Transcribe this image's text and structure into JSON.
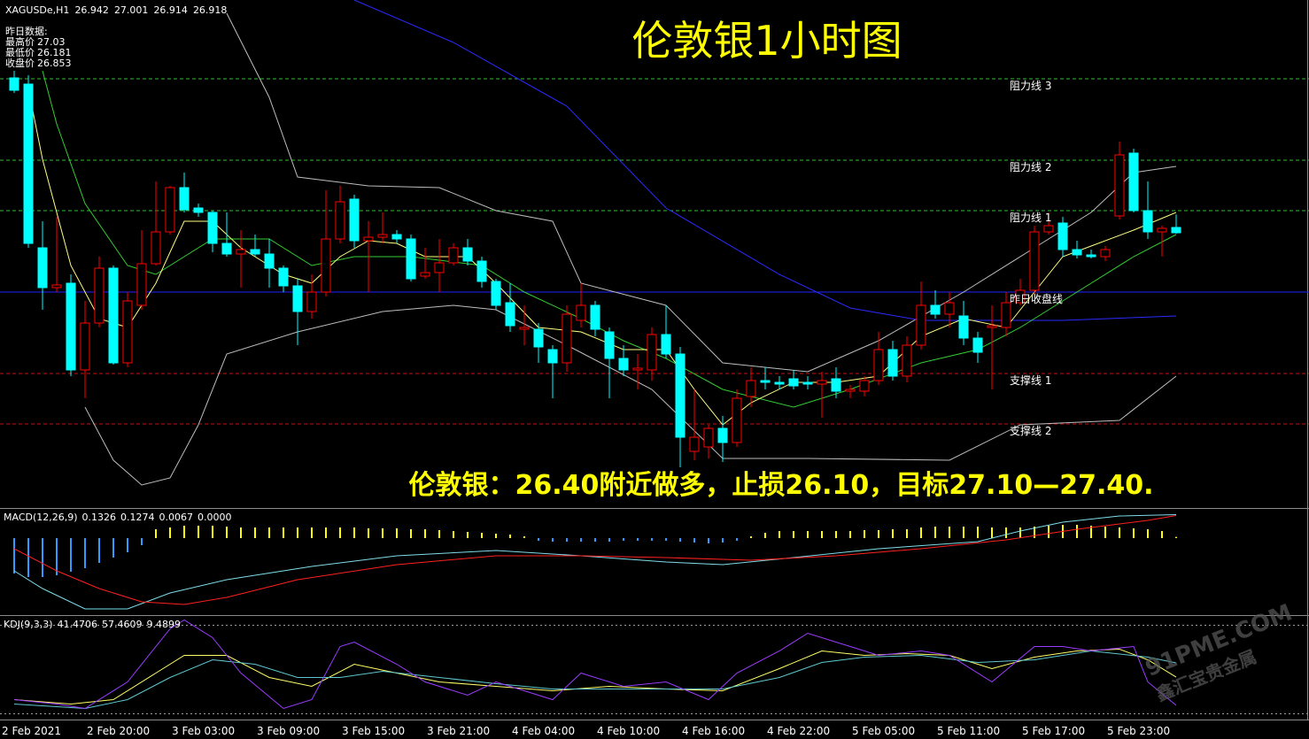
{
  "chart_data": [
    {
      "type": "candlestick",
      "title": "伦敦银1小时图",
      "symbol": "XAGUSDe,H1",
      "annotation": "伦敦银：26.40附近做多，止损26.10，目标27.10—27.40.",
      "info": {
        "heading": "昨日数据:",
        "items": [
          {
            "label": "最高价",
            "value": 27.03
          },
          {
            "label": "最低价",
            "value": 26.181
          },
          {
            "label": "收盘价",
            "value": 26.853
          }
        ]
      },
      "watermark": [
        "91PME.COM",
        "鑫汇宝贵金属"
      ],
      "categories": [
        "2 Feb 2021",
        null,
        null,
        null,
        null,
        null,
        "2 Feb 20:00",
        null,
        null,
        null,
        null,
        null,
        "3 Feb 03:00",
        null,
        null,
        null,
        null,
        null,
        "3 Feb 09:00",
        null,
        null,
        null,
        null,
        null,
        "3 Feb 15:00",
        null,
        null,
        null,
        null,
        null,
        "3 Feb 21:00",
        null,
        null,
        null,
        null,
        null,
        "4 Feb 04:00",
        null,
        null,
        null,
        null,
        null,
        "4 Feb 10:00",
        null,
        null,
        null,
        null,
        null,
        "4 Feb 16:00",
        null,
        null,
        null,
        null,
        null,
        "4 Feb 22:00",
        null,
        null,
        null,
        null,
        null,
        "5 Feb 05:00",
        null,
        null,
        null,
        null,
        null,
        "5 Feb 11:00",
        null,
        null,
        null,
        null,
        null,
        "5 Feb 17:00",
        null,
        null,
        null,
        null,
        null,
        "5 Feb 23:00",
        null,
        null,
        null,
        null
      ],
      "open": [
        27.618,
        27.59,
        26.85,
        26.67,
        26.69,
        26.298,
        26.51,
        26.758,
        26.33,
        26.59,
        26.778,
        26.922,
        27.122,
        27.03,
        27.01,
        26.87,
        26.822,
        26.842,
        26.822,
        26.758,
        26.678,
        26.562,
        26.65,
        26.89,
        27.07,
        26.882,
        26.898,
        26.91,
        26.89,
        26.722,
        26.738,
        26.782,
        26.85,
        26.79,
        26.698,
        26.602,
        26.482,
        26.482,
        26.39,
        26.33,
        26.522,
        26.59,
        26.47,
        26.35,
        26.298,
        26.298,
        26.458,
        26.37,
        25.93,
        25.95,
        26.034,
        25.97,
        26.178,
        26.25,
        26.242,
        26.258,
        26.242,
        26.234,
        26.258,
        26.202,
        26.202,
        26.25,
        26.39,
        26.27,
        26.41,
        26.59,
        26.55,
        26.542,
        26.442,
        26.49,
        26.49,
        26.602,
        26.658,
        26.922,
        26.962,
        26.842,
        26.818,
        26.81,
        26.994,
        27.278,
        27.018,
        26.922,
        26.942
      ],
      "high": [
        27.65,
        27.63,
        26.97,
        26.99,
        26.73,
        26.61,
        26.81,
        26.77,
        26.65,
        26.93,
        27.15,
        27.13,
        27.19,
        27.05,
        27.018,
        27.01,
        26.93,
        26.91,
        26.89,
        26.77,
        26.71,
        26.73,
        27.11,
        27.13,
        27.09,
        26.97,
        27.01,
        26.93,
        26.91,
        26.85,
        26.89,
        26.87,
        26.89,
        26.81,
        26.71,
        26.69,
        26.59,
        26.51,
        26.41,
        26.59,
        26.69,
        26.61,
        26.49,
        26.41,
        26.37,
        26.49,
        26.59,
        26.402,
        26.21,
        26.05,
        26.09,
        26.21,
        26.31,
        26.31,
        26.27,
        26.298,
        26.27,
        26.29,
        26.31,
        26.23,
        26.27,
        26.47,
        26.43,
        26.45,
        26.698,
        26.658,
        26.65,
        26.61,
        26.47,
        26.59,
        26.65,
        26.71,
        26.95,
        27.01,
        26.99,
        26.882,
        26.842,
        26.858,
        27.33,
        27.298,
        27.15,
        26.95,
        27.001
      ],
      "low": [
        27.55,
        26.85,
        26.57,
        26.65,
        26.27,
        26.17,
        26.49,
        26.322,
        26.31,
        26.57,
        26.77,
        26.91,
        27.01,
        26.99,
        26.83,
        26.81,
        26.67,
        26.81,
        26.67,
        26.65,
        26.41,
        26.53,
        26.63,
        26.87,
        26.85,
        26.65,
        26.87,
        26.87,
        26.698,
        26.71,
        26.65,
        26.77,
        26.77,
        26.67,
        26.57,
        26.47,
        26.41,
        26.33,
        26.17,
        26.29,
        26.49,
        26.45,
        26.17,
        26.27,
        26.21,
        26.25,
        26.35,
        25.858,
        25.89,
        25.898,
        25.882,
        25.95,
        26.13,
        26.21,
        26.21,
        26.21,
        26.21,
        26.082,
        26.17,
        26.17,
        26.178,
        26.23,
        26.25,
        26.242,
        26.39,
        26.53,
        26.49,
        26.41,
        26.33,
        26.21,
        26.45,
        26.59,
        26.63,
        26.91,
        26.81,
        26.802,
        26.802,
        26.79,
        26.978,
        27.01,
        26.89,
        26.81,
        26.914
      ],
      "close": [
        27.562,
        26.87,
        26.67,
        26.682,
        26.298,
        26.51,
        26.758,
        26.33,
        26.61,
        26.778,
        26.922,
        27.122,
        27.022,
        27.01,
        26.87,
        26.822,
        26.842,
        26.822,
        26.758,
        26.678,
        26.562,
        26.65,
        26.89,
        27.058,
        26.882,
        26.898,
        26.91,
        26.89,
        26.71,
        26.738,
        26.782,
        26.85,
        26.79,
        26.698,
        26.59,
        26.498,
        26.49,
        26.402,
        26.33,
        26.55,
        26.59,
        26.482,
        26.35,
        26.298,
        26.306,
        26.458,
        26.37,
        25.994,
        25.994,
        26.034,
        25.97,
        26.17,
        26.25,
        26.242,
        26.234,
        26.226,
        26.234,
        26.25,
        26.202,
        26.21,
        26.25,
        26.39,
        26.27,
        26.41,
        26.59,
        26.55,
        26.602,
        26.442,
        26.378,
        26.498,
        26.602,
        26.658,
        26.922,
        26.95,
        26.842,
        26.818,
        26.81,
        26.842,
        27.27,
        27.018,
        26.922,
        26.938,
        26.918
      ],
      "up_color": "#ff0000",
      "down_color": "#00ffff",
      "ylim": [
        25.682,
        27.97
      ],
      "levels": [
        {
          "label": "阻力线 3",
          "value": 27.614,
          "color": "#2fbf2f",
          "style": "dashed"
        },
        {
          "label": "阻力线 2",
          "value": 27.246,
          "color": "#2fbf2f",
          "style": "dashed"
        },
        {
          "label": "阻力线 1",
          "value": 27.018,
          "color": "#2fbf2f",
          "style": "dashed"
        },
        {
          "label": "昨日收盘线",
          "value": 26.65,
          "color": "#2222ff",
          "style": "solid"
        },
        {
          "label": "支撑线 1",
          "value": 26.282,
          "color": "#cc1010",
          "style": "dashed"
        },
        {
          "label": "支撑线 2",
          "value": 26.054,
          "color": "#cc1010",
          "style": "dashed"
        }
      ],
      "overlays": [
        {
          "color": "#bdbdbd",
          "x": [
            15,
            18,
            20,
            25,
            30,
            34,
            38,
            40,
            46,
            50,
            56,
            61,
            67,
            72,
            76,
            79,
            82
          ],
          "values": [
            27.91,
            27.53,
            27.17,
            27.13,
            27.122,
            27.018,
            26.97,
            26.69,
            26.59,
            26.33,
            26.29,
            26.43,
            26.65,
            26.85,
            27.01,
            27.19,
            27.218
          ]
        },
        {
          "color": "#bdbdbd",
          "x": [
            5,
            7,
            9,
            11,
            13,
            15,
            20,
            26,
            31,
            34,
            39,
            45,
            50,
            56,
            66,
            71,
            78,
            82
          ],
          "values": [
            26.13,
            25.89,
            25.778,
            25.81,
            26.05,
            26.37,
            26.47,
            26.562,
            26.59,
            26.57,
            26.41,
            26.21,
            25.898,
            25.898,
            25.89,
            26.05,
            26.07,
            26.27
          ]
        },
        {
          "color": "#2a2aff",
          "x": [
            24,
            31,
            39,
            46,
            54,
            59,
            64,
            74,
            82
          ],
          "values": [
            27.97,
            27.778,
            27.49,
            27.03,
            26.73,
            26.578,
            26.522,
            26.522,
            26.542
          ]
        },
        {
          "color": "#33cc33",
          "x": [
            2,
            3,
            5,
            8,
            10,
            14,
            18,
            21,
            24,
            28,
            33,
            36,
            40,
            43,
            46,
            50,
            55,
            59,
            64,
            68,
            71,
            75,
            79,
            82
          ],
          "values": [
            27.65,
            27.41,
            27.05,
            26.77,
            26.73,
            26.89,
            26.89,
            26.77,
            26.81,
            26.81,
            26.77,
            26.65,
            26.53,
            26.43,
            26.35,
            26.21,
            26.13,
            26.21,
            26.33,
            26.39,
            26.49,
            26.65,
            26.81,
            26.91
          ]
        },
        {
          "color": "#ffff80",
          "x": [
            1,
            2,
            4,
            6,
            8,
            10,
            12,
            14,
            16,
            19,
            21,
            23,
            25,
            27,
            29,
            32,
            34,
            37,
            40,
            43,
            46,
            48,
            50,
            52,
            55,
            58,
            61,
            64,
            67,
            70,
            72,
            74,
            76,
            79,
            82
          ],
          "values": [
            27.57,
            27.25,
            26.77,
            26.53,
            26.49,
            26.69,
            26.97,
            26.97,
            26.85,
            26.73,
            26.69,
            26.81,
            26.882,
            26.87,
            26.81,
            26.81,
            26.69,
            26.49,
            26.47,
            26.39,
            26.39,
            26.21,
            26.05,
            26.15,
            26.242,
            26.242,
            26.27,
            26.45,
            26.53,
            26.49,
            26.65,
            26.81,
            26.858,
            26.93,
            27.01
          ]
        }
      ]
    },
    {
      "type": "macd",
      "name": "MACD(12,26,9)",
      "ylim": [
        -0.43,
        0.155
      ],
      "histogram": {
        "up_color": "#ffff00",
        "down_color": "#3399ff",
        "values": [
          -0.2,
          -0.22,
          -0.22,
          -0.21,
          -0.19,
          -0.17,
          -0.14,
          -0.11,
          -0.08,
          -0.04,
          0.05,
          0.06,
          0.07,
          0.07,
          0.07,
          0.065,
          0.06,
          0.06,
          0.06,
          0.06,
          0.06,
          0.06,
          0.06,
          0.06,
          0.06,
          0.055,
          0.055,
          0.055,
          0.05,
          0.05,
          0.045,
          0.04,
          0.035,
          0.03,
          0.025,
          0.02,
          0.01,
          -0.015,
          -0.02,
          -0.02,
          -0.02,
          -0.02,
          -0.02,
          -0.015,
          -0.015,
          -0.015,
          -0.015,
          -0.02,
          -0.025,
          -0.03,
          -0.025,
          -0.015,
          0.01,
          0.03,
          0.04,
          0.04,
          0.04,
          0.04,
          0.04,
          0.04,
          0.045,
          0.045,
          0.05,
          0.05,
          0.06,
          0.065,
          0.065,
          0.065,
          0.065,
          0.06,
          0.06,
          0.06,
          0.065,
          0.07,
          0.075,
          0.075,
          0.07,
          0.065,
          0.06,
          0.055,
          0.05,
          0.04,
          0.0067
        ]
      },
      "series": [
        {
          "color": "#7fdcea",
          "x": [
            0,
            2,
            5,
            8,
            11,
            15,
            21,
            27,
            34,
            40,
            46,
            50,
            55,
            61,
            68,
            71,
            74,
            78,
            82
          ],
          "values": [
            -0.185,
            -0.285,
            -0.4,
            -0.4,
            -0.31,
            -0.235,
            -0.16,
            -0.1,
            -0.07,
            -0.1,
            -0.135,
            -0.15,
            -0.11,
            -0.06,
            -0.02,
            0.04,
            0.09,
            0.125,
            0.1326
          ]
        },
        {
          "color": "#ff2020",
          "x": [
            0,
            3,
            6,
            9,
            12,
            15,
            20,
            27,
            34,
            40,
            46,
            52,
            58,
            64,
            70,
            75,
            80,
            82
          ],
          "values": [
            -0.06,
            -0.185,
            -0.285,
            -0.36,
            -0.375,
            -0.335,
            -0.235,
            -0.15,
            -0.1,
            -0.1,
            -0.11,
            -0.125,
            -0.1,
            -0.06,
            -0.01,
            0.05,
            0.1,
            0.1274
          ]
        }
      ],
      "readout_extra": {
        "value": 0,
        "label": "0.0000"
      }
    },
    {
      "type": "line",
      "name": "KDJ(9,3,3)",
      "ylim": [
        -5.5,
        109.5
      ],
      "levels": [
        0,
        100
      ],
      "series": [
        {
          "color": "#ffff66",
          "x": [
            0,
            4,
            7,
            10,
            12,
            15,
            18,
            21,
            24,
            27,
            30,
            34,
            38,
            42,
            46,
            50,
            54,
            57,
            60,
            63,
            66,
            69,
            72,
            75,
            78,
            80,
            82
          ],
          "values": [
            16,
            11,
            16,
            46,
            66,
            66,
            41,
            31,
            56,
            46,
            36,
            31,
            26,
            31,
            28,
            26,
            51,
            71,
            66,
            68,
            66,
            51,
            64,
            71,
            73,
            61,
            41.4706
          ]
        },
        {
          "color": "#5fc8d0",
          "x": [
            0,
            5,
            8,
            11,
            14,
            17,
            20,
            23,
            26,
            30,
            34,
            38,
            42,
            46,
            50,
            54,
            57,
            60,
            64,
            68,
            72,
            76,
            80,
            82
          ],
          "values": [
            11,
            6,
            16,
            41,
            61,
            56,
            41,
            41,
            48,
            41,
            34,
            28,
            28,
            28,
            28,
            41,
            58,
            64,
            66,
            58,
            61,
            71,
            64,
            57.4609
          ]
        },
        {
          "color": "#9b3cff",
          "x": [
            0,
            3,
            5,
            8,
            11,
            12,
            14,
            16,
            19,
            21,
            23,
            24,
            27,
            29,
            32,
            34,
            38,
            40,
            43,
            46,
            49,
            51,
            54,
            56,
            59,
            61,
            64,
            66,
            69,
            72,
            74,
            76,
            79,
            80,
            82
          ],
          "values": [
            16,
            11,
            6,
            36,
            96,
            106,
            86,
            46,
            6,
            16,
            76,
            81,
            56,
            36,
            21,
            36,
            16,
            46,
            31,
            36,
            16,
            46,
            71,
            91,
            76,
            66,
            71,
            66,
            36,
            76,
            76,
            71,
            76,
            36,
            9.4899
          ]
        }
      ]
    }
  ]
}
